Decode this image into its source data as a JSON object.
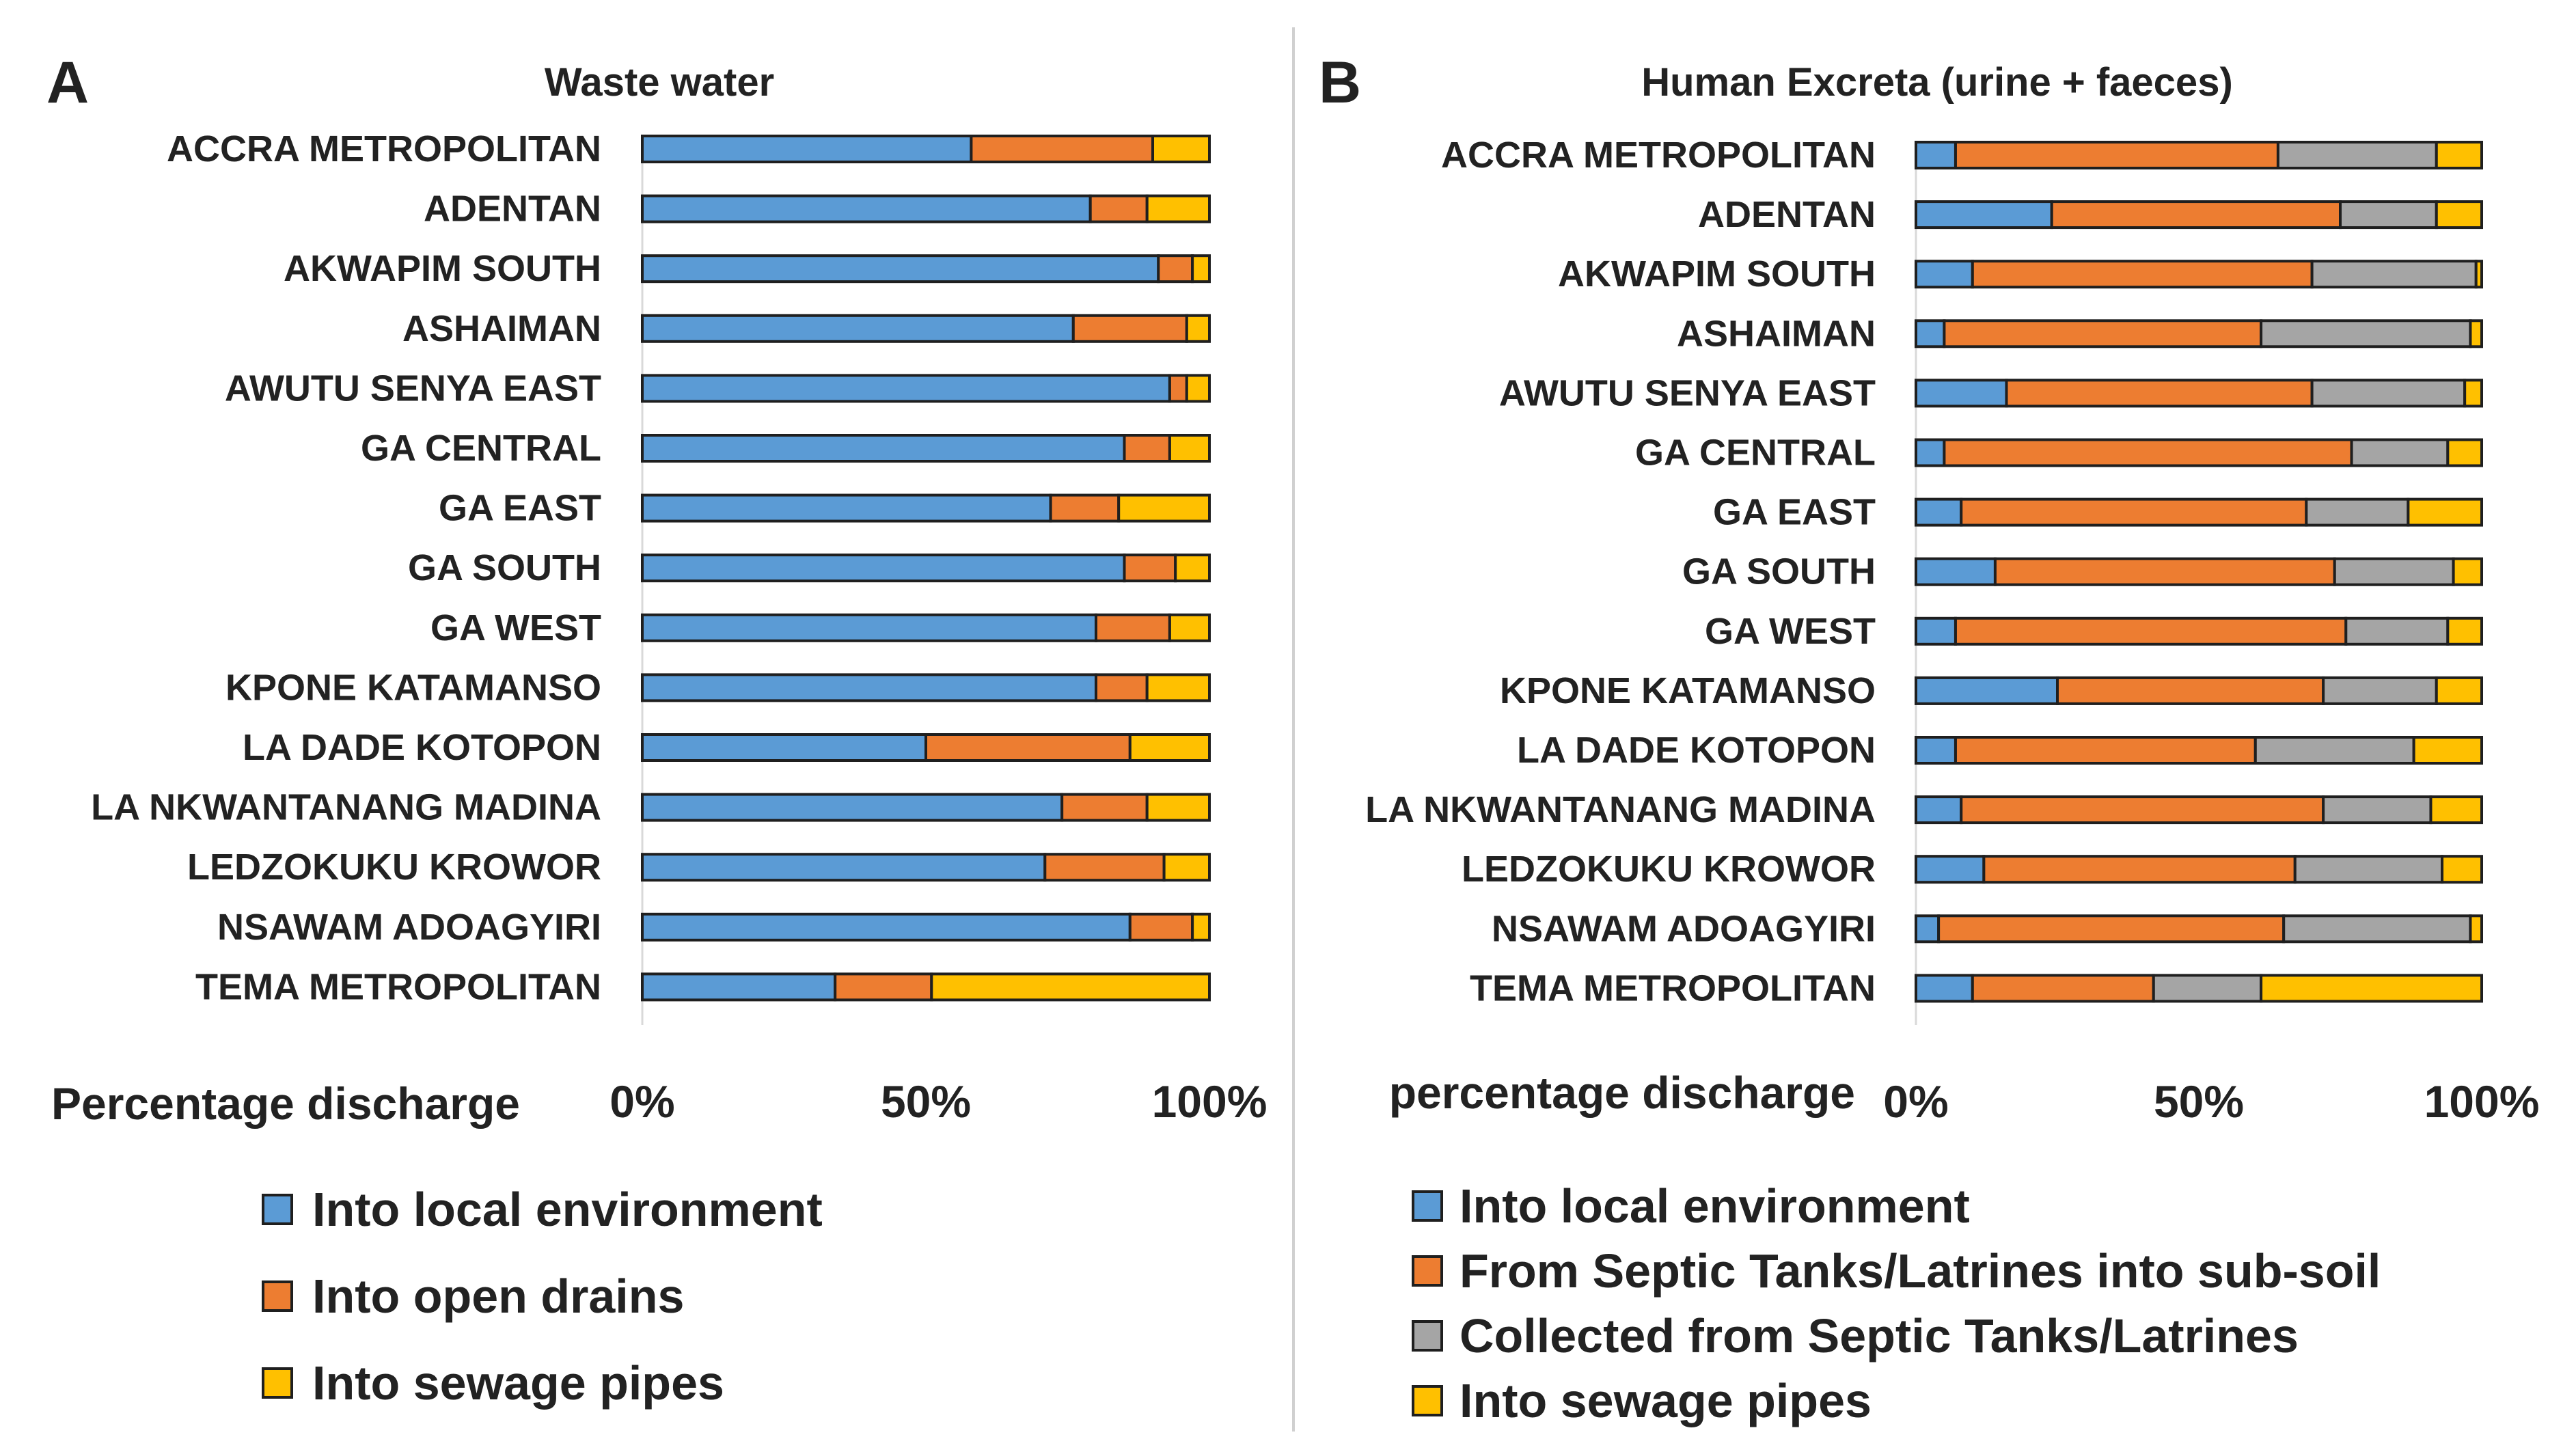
{
  "chart_data": [
    {
      "panel": "A",
      "type": "bar",
      "stacked": true,
      "orientation": "horizontal",
      "normalized": "100%",
      "title": "Waste water",
      "xlabel": "Percentage discharge",
      "xlim": [
        0,
        100
      ],
      "ticks": [
        "0%",
        "50%",
        "100%"
      ],
      "tick_values": [
        0,
        50,
        100
      ],
      "categories": [
        "ACCRA METROPOLITAN",
        "ADENTAN",
        "AKWAPIM SOUTH",
        "ASHAIMAN",
        "AWUTU SENYA EAST",
        "GA CENTRAL",
        "GA EAST",
        "GA SOUTH",
        "GA WEST",
        "KPONE KATAMANSO",
        "LA DADE KOTOPON",
        "LA NKWANTANANG MADINA",
        "LEDZOKUKU KROWOR",
        "NSAWAM ADOAGYIRI",
        "TEMA METROPOLITAN"
      ],
      "series": [
        {
          "name": "Into local environment",
          "color": "#5b9bd5",
          "values": [
            58,
            79,
            91,
            76,
            93,
            85,
            72,
            85,
            80,
            80,
            50,
            74,
            71,
            86,
            34
          ]
        },
        {
          "name": "Into open drains",
          "color": "#ed7d31",
          "values": [
            32,
            10,
            6,
            20,
            3,
            8,
            12,
            9,
            13,
            9,
            36,
            15,
            21,
            11,
            17
          ]
        },
        {
          "name": "Into sewage pipes",
          "color": "#ffc000",
          "values": [
            10,
            11,
            3,
            4,
            4,
            7,
            16,
            6,
            7,
            11,
            14,
            11,
            8,
            3,
            49
          ]
        }
      ],
      "legend_position": "bottom"
    },
    {
      "panel": "B",
      "type": "bar",
      "stacked": true,
      "orientation": "horizontal",
      "normalized": "100%",
      "title": "Human Excreta (urine + faeces)",
      "xlabel": "percentage discharge",
      "xlim": [
        0,
        100
      ],
      "ticks": [
        "0%",
        "50%",
        "100%"
      ],
      "tick_values": [
        0,
        50,
        100
      ],
      "categories": [
        "ACCRA METROPOLITAN",
        "ADENTAN",
        "AKWAPIM SOUTH",
        "ASHAIMAN",
        "AWUTU SENYA EAST",
        "GA CENTRAL",
        "GA EAST",
        "GA SOUTH",
        "GA WEST",
        "KPONE KATAMANSO",
        "LA DADE KOTOPON",
        "LA NKWANTANANG MADINA",
        "LEDZOKUKU KROWOR",
        "NSAWAM ADOAGYIRI",
        "TEMA METROPOLITAN"
      ],
      "series": [
        {
          "name": "Into local environment",
          "color": "#5b9bd5",
          "values": [
            7,
            24,
            10,
            5,
            16,
            5,
            8,
            14,
            7,
            25,
            7,
            8,
            12,
            4,
            10
          ]
        },
        {
          "name": "From Septic Tanks/Latrines into sub-soil",
          "color": "#ed7d31",
          "values": [
            57,
            51,
            60,
            56,
            54,
            72,
            61,
            60,
            69,
            47,
            53,
            64,
            55,
            61,
            32
          ]
        },
        {
          "name": "Collected from Septic Tanks/Latrines",
          "color": "#a5a5a5",
          "values": [
            28,
            17,
            29,
            37,
            27,
            17,
            18,
            21,
            18,
            20,
            28,
            19,
            26,
            33,
            19
          ]
        },
        {
          "name": "Into sewage pipes",
          "color": "#ffc000",
          "values": [
            8,
            8,
            1,
            2,
            3,
            6,
            13,
            5,
            6,
            8,
            12,
            9,
            7,
            2,
            39
          ]
        }
      ],
      "legend_position": "bottom"
    }
  ]
}
